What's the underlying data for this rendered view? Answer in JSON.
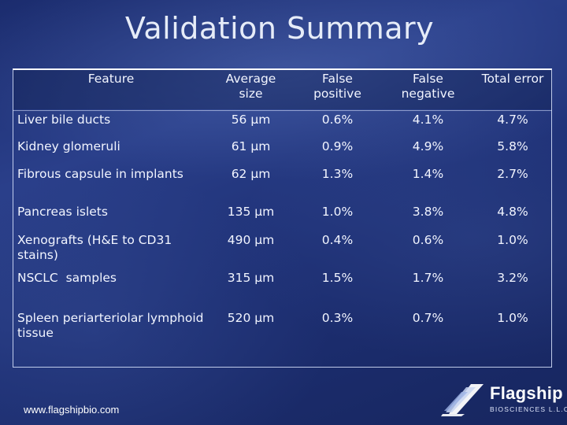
{
  "slide": {
    "title": "Validation Summary",
    "website": "www.flagshipbio.com"
  },
  "logo": {
    "name": "Flagship",
    "subtitle": "BIOSCIENCES L.L.C.",
    "icon": "flag-sail-icon"
  },
  "table": {
    "headers": [
      "Feature",
      "Average size",
      "False positive",
      "False negative",
      "Total error"
    ],
    "rows": [
      {
        "feature": "Liver bile ducts",
        "size": "56 µm",
        "fp": "0.6%",
        "fn": "4.1%",
        "total": "4.7%"
      },
      {
        "feature": "Kidney glomeruli",
        "size": "61 µm",
        "fp": "0.9%",
        "fn": "4.9%",
        "total": "5.8%"
      },
      {
        "feature": "Fibrous capsule in implants",
        "size": "62 µm",
        "fp": "1.3%",
        "fn": "1.4%",
        "total": "2.7%"
      },
      {
        "feature": "Pancreas islets",
        "size": "135 µm",
        "fp": "1.0%",
        "fn": "3.8%",
        "total": "4.8%"
      },
      {
        "feature": "Xenografts (H&E to CD31 stains)",
        "size": "490 µm",
        "fp": "0.4%",
        "fn": "0.6%",
        "total": "1.0%"
      },
      {
        "feature": "NSCLC  samples",
        "size": "315 µm",
        "fp": "1.5%",
        "fn": "1.7%",
        "total": "3.2%"
      },
      {
        "feature": "Spleen periarteriolar lymphoid tissue",
        "size": "520 µm",
        "fp": "0.3%",
        "fn": "0.7%",
        "total": "1.0%"
      }
    ]
  },
  "colors": {
    "background": "#1d2f73",
    "text": "#ffffff"
  }
}
